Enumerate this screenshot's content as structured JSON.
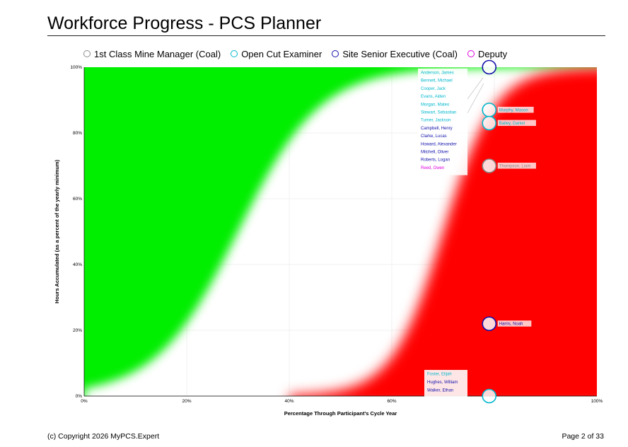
{
  "report": {
    "title": "Workforce Progress - PCS Planner",
    "copyright": "(c) Copyright 2026 MyPCS.Expert",
    "page_label": "Page 2 of 33"
  },
  "legend": [
    {
      "name": "1st Class Mine Manager (Coal)",
      "color": "#8a8a8a"
    },
    {
      "name": "Open Cut Examiner",
      "color": "#00b7cc"
    },
    {
      "name": "Site Senior Executive (Coal)",
      "color": "#1010aa"
    },
    {
      "name": "Deputy",
      "color": "#e000e0"
    }
  ],
  "colors": {
    "ahead_zone": "#00ee00",
    "behind_zone": "#ff0000",
    "neutral_zone": "#ffffff"
  },
  "chart_data": {
    "type": "scatter",
    "xlabel": "Percentage Through Participant's Cycle Year",
    "ylabel": "Hours Accumulated (as a percent of the yearly minimum)",
    "xlim": [
      0,
      100
    ],
    "ylim": [
      0,
      100
    ],
    "x_ticks": [
      "0%",
      "20%",
      "40%",
      "60%",
      "",
      "100%"
    ],
    "y_ticks": [
      "0%",
      "20%",
      "40%",
      "60%",
      "80%",
      "100%"
    ],
    "grid": true,
    "series": [
      {
        "name": "1st Class Mine Manager (Coal)",
        "points": [
          {
            "label": "Thompson, Liam",
            "x": 79,
            "y": 70
          }
        ]
      },
      {
        "name": "Open Cut Examiner",
        "points": [
          {
            "label": "Murphy, Mason",
            "x": 79,
            "y": 87
          },
          {
            "label": "Bailey, Daniel",
            "x": 79,
            "y": 83
          },
          {
            "label": "Foster, Elijah",
            "x": 79,
            "y": 0
          }
        ]
      },
      {
        "name": "Site Senior Executive (Coal)",
        "points": [
          {
            "label": "Harris, Noah",
            "x": 79,
            "y": 22
          },
          {
            "label": "Hughes, William",
            "x": 79,
            "y": 0
          },
          {
            "label": "Walker, Ethan",
            "x": 79,
            "y": 0
          }
        ]
      },
      {
        "name": "Open Cut Examiner",
        "points": [
          {
            "label": "Anderson, James",
            "x": 79,
            "y": 100
          },
          {
            "label": "Bennett, Michael",
            "x": 79,
            "y": 100
          },
          {
            "label": "Cooper, Jack",
            "x": 79,
            "y": 100
          },
          {
            "label": "Evans, Aiden",
            "x": 79,
            "y": 100
          },
          {
            "label": "Morgan, Mateo",
            "x": 79,
            "y": 100
          },
          {
            "label": "Stewart, Sebastian",
            "x": 79,
            "y": 100
          },
          {
            "label": "Turner, Jackson",
            "x": 79,
            "y": 100
          }
        ]
      },
      {
        "name": "Site Senior Executive (Coal)",
        "points": [
          {
            "label": "Campbell, Henry",
            "x": 79,
            "y": 100
          },
          {
            "label": "Clarke, Lucas",
            "x": 79,
            "y": 100
          },
          {
            "label": "Howard, Alexander",
            "x": 79,
            "y": 100
          },
          {
            "label": "Mitchell, Oliver",
            "x": 79,
            "y": 100
          },
          {
            "label": "Roberts, Logan",
            "x": 79,
            "y": 100
          }
        ]
      },
      {
        "name": "Deputy",
        "points": [
          {
            "label": "Reed, Owen",
            "x": 79,
            "y": 100
          }
        ]
      }
    ],
    "label_groups": [
      {
        "anchor_y": 100,
        "entries": [
          {
            "text": "Anderson, James",
            "color": "#00b7cc"
          },
          {
            "text": "Bennett, Michael",
            "color": "#00b7cc"
          },
          {
            "text": "Cooper, Jack",
            "color": "#00b7cc"
          },
          {
            "text": "Evans, Aiden",
            "color": "#00b7cc"
          },
          {
            "text": "Morgan, Mateo",
            "color": "#00b7cc"
          },
          {
            "text": "Stewart, Sebastian",
            "color": "#00b7cc"
          },
          {
            "text": "Turner, Jackson",
            "color": "#00b7cc"
          },
          {
            "text": "Campbell, Henry",
            "color": "#1010aa"
          },
          {
            "text": "Clarke, Lucas",
            "color": "#1010aa"
          },
          {
            "text": "Howard, Alexander",
            "color": "#1010aa"
          },
          {
            "text": "Mitchell, Oliver",
            "color": "#1010aa"
          },
          {
            "text": "Roberts, Logan",
            "color": "#1010aa"
          },
          {
            "text": "Reed, Owen",
            "color": "#e000e0"
          }
        ]
      },
      {
        "anchor_y": 0,
        "entries": [
          {
            "text": "Foster, Elijah",
            "color": "#00b7cc"
          },
          {
            "text": "Hughes, William",
            "color": "#1010aa"
          },
          {
            "text": "Walker, Ethan",
            "color": "#1010aa"
          }
        ]
      }
    ],
    "markers": [
      {
        "series": "Site Senior Executive (Coal)",
        "x": 79,
        "y": 100
      },
      {
        "series": "Open Cut Examiner",
        "x": 79,
        "y": 87,
        "label": "Murphy, Mason"
      },
      {
        "series": "Open Cut Examiner",
        "x": 79,
        "y": 83,
        "label": "Bailey, Daniel"
      },
      {
        "series": "1st Class Mine Manager (Coal)",
        "x": 79,
        "y": 70,
        "label": "Thompson, Liam"
      },
      {
        "series": "Site Senior Executive (Coal)",
        "x": 79,
        "y": 22,
        "label": "Harris, Noah"
      },
      {
        "series": "Open Cut Examiner",
        "x": 79,
        "y": 0
      }
    ]
  }
}
